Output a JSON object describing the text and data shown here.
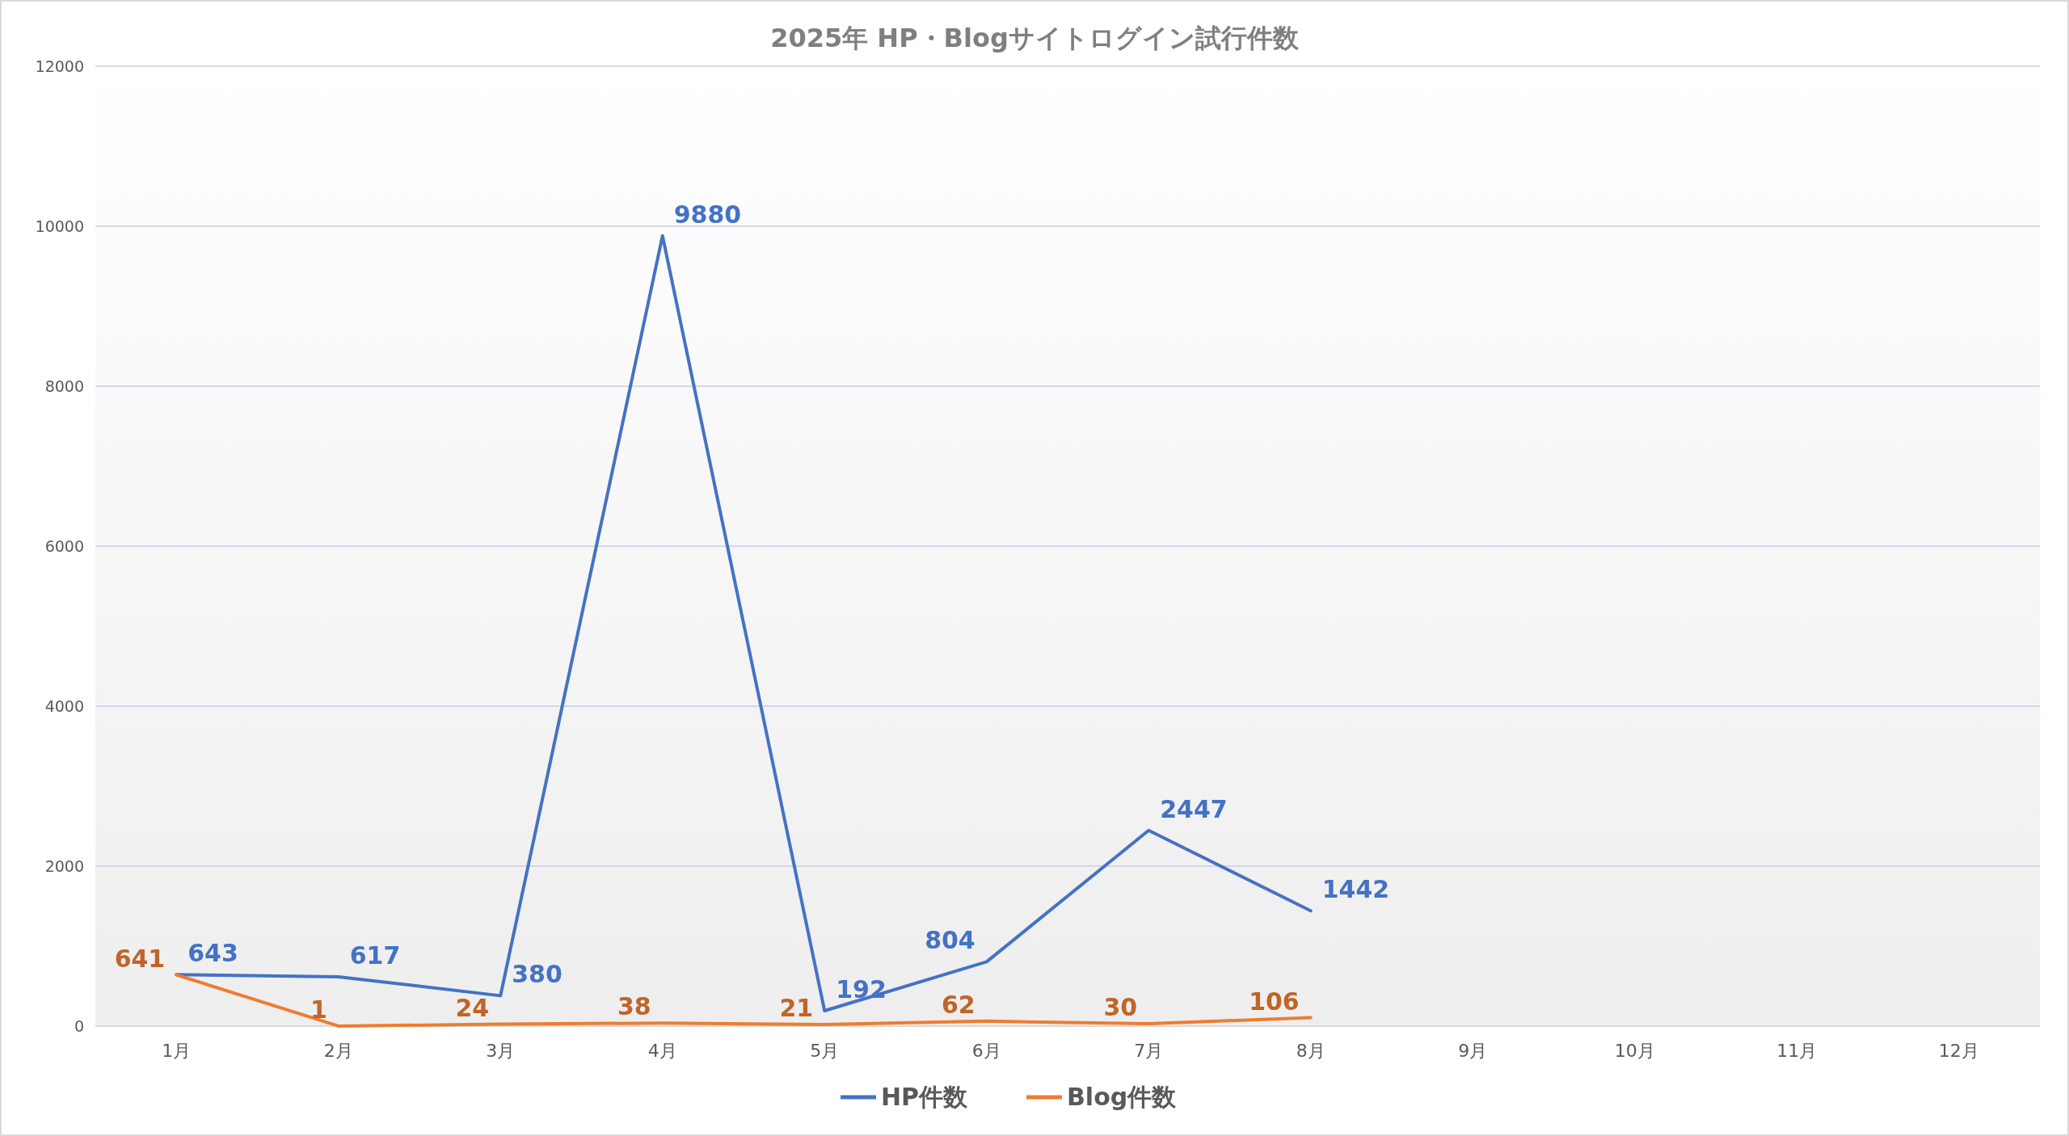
{
  "chart_data": {
    "type": "line",
    "title": "2025年 HP・Blogサイトログイン試行件数",
    "categories": [
      "1月",
      "2月",
      "3月",
      "4月",
      "5月",
      "6月",
      "7月",
      "8月",
      "9月",
      "10月",
      "11月",
      "12月"
    ],
    "series": [
      {
        "name": "HP件数",
        "color": "#4472c4",
        "values": [
          643,
          617,
          380,
          9880,
          192,
          804,
          2447,
          1442,
          null,
          null,
          null,
          null
        ]
      },
      {
        "name": "Blog件数",
        "color": "#ed7d31",
        "values": [
          641,
          1,
          24,
          38,
          21,
          62,
          30,
          106,
          null,
          null,
          null,
          null
        ]
      }
    ],
    "ylim": [
      0,
      12000
    ],
    "yticks": [
      0,
      2000,
      4000,
      6000,
      8000,
      10000,
      12000
    ],
    "grid": "y",
    "legend": "bottom",
    "data_labels": true,
    "marker": "none",
    "line_style": "solid"
  }
}
